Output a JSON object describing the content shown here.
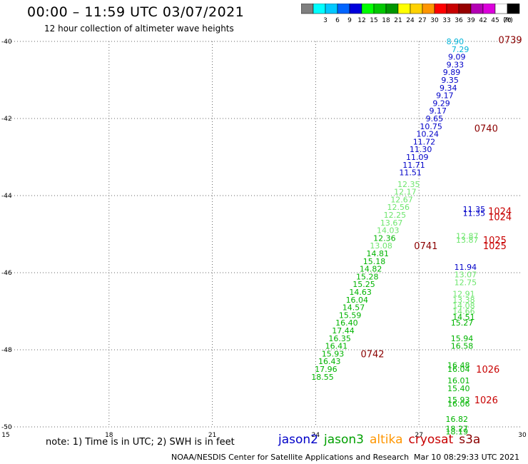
{
  "header": {
    "title": "00:00 – 11:59 UTC 03/07/2021",
    "subtitle": "12 hour collection of altimeter wave heights"
  },
  "colorbar": {
    "unit": "(ft)",
    "bins": [
      {
        "label": "",
        "color": "#7f7f7f"
      },
      {
        "label": "3",
        "color": "#00ffff"
      },
      {
        "label": "6",
        "color": "#00c8ff"
      },
      {
        "label": "9",
        "color": "#0064ff"
      },
      {
        "label": "12",
        "color": "#0000dc"
      },
      {
        "label": "15",
        "color": "#00ff00"
      },
      {
        "label": "18",
        "color": "#00c800"
      },
      {
        "label": "21",
        "color": "#009600"
      },
      {
        "label": "24",
        "color": "#ffff00"
      },
      {
        "label": "27",
        "color": "#ffd200"
      },
      {
        "label": "30",
        "color": "#ff9600"
      },
      {
        "label": "33",
        "color": "#ff0000"
      },
      {
        "label": "36",
        "color": "#c80000"
      },
      {
        "label": "39",
        "color": "#960000"
      },
      {
        "label": "42",
        "color": "#b400b4"
      },
      {
        "label": "45",
        "color": "#dc00dc"
      },
      {
        "label": "70",
        "color": "#ffffff"
      },
      {
        "label": "",
        "color": "#000000"
      }
    ]
  },
  "map": {
    "lon_labels": [
      "15",
      "18",
      "21",
      "24",
      "27",
      "30"
    ],
    "lon_values": [
      15,
      18,
      21,
      24,
      27,
      30
    ],
    "lat_labels": [
      "-40",
      "-42",
      "-44",
      "-46",
      "-48",
      "-50"
    ],
    "lat_values": [
      -40,
      -42,
      -44,
      -46,
      -48,
      -50
    ],
    "lon_range": [
      15,
      30
    ],
    "lat_range": [
      -40,
      -50
    ]
  },
  "observations": [
    {
      "lon": 28.05,
      "lat": -40.0,
      "text": "8.90",
      "color": "#00b4d8"
    },
    {
      "lon": 28.2,
      "lat": -40.2,
      "text": "7.29",
      "color": "#00b4d8"
    },
    {
      "lon": 28.1,
      "lat": -40.4,
      "text": "9.09",
      "color": "#0000c8"
    },
    {
      "lon": 28.05,
      "lat": -40.6,
      "text": "9.33",
      "color": "#0000c8"
    },
    {
      "lon": 27.95,
      "lat": -40.8,
      "text": "9.89",
      "color": "#0000c8"
    },
    {
      "lon": 27.9,
      "lat": -41.0,
      "text": "9.35",
      "color": "#0000c8"
    },
    {
      "lon": 27.85,
      "lat": -41.2,
      "text": "9.34",
      "color": "#0000c8"
    },
    {
      "lon": 27.75,
      "lat": -41.4,
      "text": "9.17",
      "color": "#0000c8"
    },
    {
      "lon": 27.65,
      "lat": -41.6,
      "text": "9.29",
      "color": "#0000c8"
    },
    {
      "lon": 27.55,
      "lat": -41.8,
      "text": "9.17",
      "color": "#0000c8"
    },
    {
      "lon": 27.45,
      "lat": -42.0,
      "text": "9.65",
      "color": "#0000c8"
    },
    {
      "lon": 27.35,
      "lat": -42.2,
      "text": "10.75",
      "color": "#0000c8"
    },
    {
      "lon": 27.25,
      "lat": -42.4,
      "text": "10.24",
      "color": "#0000c8"
    },
    {
      "lon": 27.15,
      "lat": -42.6,
      "text": "11.72",
      "color": "#0000c8"
    },
    {
      "lon": 27.05,
      "lat": -42.8,
      "text": "11.30",
      "color": "#0000c8"
    },
    {
      "lon": 26.95,
      "lat": -43.0,
      "text": "11.09",
      "color": "#0000c8"
    },
    {
      "lon": 26.85,
      "lat": -43.2,
      "text": "11.71",
      "color": "#0000c8"
    },
    {
      "lon": 26.75,
      "lat": -43.4,
      "text": "11.51",
      "color": "#0000c8"
    },
    {
      "lon": 26.7,
      "lat": -43.7,
      "text": "12.35",
      "color": "#6ee66e"
    },
    {
      "lon": 26.6,
      "lat": -43.9,
      "text": "12.17",
      "color": "#6ee66e"
    },
    {
      "lon": 26.5,
      "lat": -44.1,
      "text": "12.67",
      "color": "#6ee66e"
    },
    {
      "lon": 26.4,
      "lat": -44.3,
      "text": "12.56",
      "color": "#6ee66e"
    },
    {
      "lon": 26.3,
      "lat": -44.5,
      "text": "12.25",
      "color": "#6ee66e"
    },
    {
      "lon": 26.2,
      "lat": -44.7,
      "text": "13.67",
      "color": "#6ee66e"
    },
    {
      "lon": 26.1,
      "lat": -44.9,
      "text": "14.03",
      "color": "#6ee66e"
    },
    {
      "lon": 26.0,
      "lat": -45.1,
      "text": "12.36",
      "color": "#00b400"
    },
    {
      "lon": 25.9,
      "lat": -45.3,
      "text": "13.08",
      "color": "#6ee66e"
    },
    {
      "lon": 25.8,
      "lat": -45.5,
      "text": "14.81",
      "color": "#00b400"
    },
    {
      "lon": 25.7,
      "lat": -45.7,
      "text": "15.18",
      "color": "#00b400"
    },
    {
      "lon": 25.6,
      "lat": -45.9,
      "text": "14.82",
      "color": "#00b400"
    },
    {
      "lon": 25.5,
      "lat": -46.1,
      "text": "15.28",
      "color": "#00b400"
    },
    {
      "lon": 25.4,
      "lat": -46.3,
      "text": "15.25",
      "color": "#00b400"
    },
    {
      "lon": 25.3,
      "lat": -46.5,
      "text": "14.63",
      "color": "#00b400"
    },
    {
      "lon": 25.2,
      "lat": -46.7,
      "text": "16.04",
      "color": "#00b400"
    },
    {
      "lon": 25.1,
      "lat": -46.9,
      "text": "14.57",
      "color": "#00b400"
    },
    {
      "lon": 25.0,
      "lat": -47.1,
      "text": "15.59",
      "color": "#00b400"
    },
    {
      "lon": 24.9,
      "lat": -47.3,
      "text": "16.40",
      "color": "#00b400"
    },
    {
      "lon": 24.8,
      "lat": -47.5,
      "text": "17.44",
      "color": "#00b400"
    },
    {
      "lon": 24.7,
      "lat": -47.7,
      "text": "16.35",
      "color": "#00b400"
    },
    {
      "lon": 24.6,
      "lat": -47.9,
      "text": "16.41",
      "color": "#00b400"
    },
    {
      "lon": 24.5,
      "lat": -48.1,
      "text": "15.93",
      "color": "#00b400"
    },
    {
      "lon": 24.4,
      "lat": -48.3,
      "text": "16.43",
      "color": "#00b400"
    },
    {
      "lon": 24.3,
      "lat": -48.5,
      "text": "17.96",
      "color": "#00b400"
    },
    {
      "lon": 24.2,
      "lat": -48.7,
      "text": "18.55",
      "color": "#00b400"
    },
    {
      "lon": 28.6,
      "lat": -44.35,
      "text": "11.35",
      "color": "#0000c8"
    },
    {
      "lon": 28.6,
      "lat": -44.45,
      "text": "11.35",
      "color": "#0000c8"
    },
    {
      "lon": 28.4,
      "lat": -45.05,
      "text": "12.87",
      "color": "#6ee66e"
    },
    {
      "lon": 28.4,
      "lat": -45.15,
      "text": "13.87",
      "color": "#6ee66e"
    },
    {
      "lon": 28.35,
      "lat": -45.85,
      "text": "11.94",
      "color": "#0000c8"
    },
    {
      "lon": 28.35,
      "lat": -46.05,
      "text": "13.07",
      "color": "#6ee66e"
    },
    {
      "lon": 28.35,
      "lat": -46.25,
      "text": "12.75",
      "color": "#6ee66e"
    },
    {
      "lon": 28.3,
      "lat": -46.55,
      "text": "12.91",
      "color": "#6ee66e"
    },
    {
      "lon": 28.3,
      "lat": -46.7,
      "text": "13.38",
      "color": "#6ee66e"
    },
    {
      "lon": 28.3,
      "lat": -46.85,
      "text": "14.08",
      "color": "#6ee66e"
    },
    {
      "lon": 28.3,
      "lat": -47.0,
      "text": "14.66",
      "color": "#6ee66e"
    },
    {
      "lon": 28.3,
      "lat": -47.15,
      "text": "14.51",
      "color": "#00b400"
    },
    {
      "lon": 28.25,
      "lat": -47.3,
      "text": "15.27",
      "color": "#00b400"
    },
    {
      "lon": 28.25,
      "lat": -47.7,
      "text": "15.94",
      "color": "#00b400"
    },
    {
      "lon": 28.25,
      "lat": -47.9,
      "text": "16.58",
      "color": "#00b400"
    },
    {
      "lon": 28.15,
      "lat": -48.4,
      "text": "16.48",
      "color": "#00b400"
    },
    {
      "lon": 28.15,
      "lat": -48.5,
      "text": "16.04",
      "color": "#00b400"
    },
    {
      "lon": 28.15,
      "lat": -48.8,
      "text": "16.01",
      "color": "#00b400"
    },
    {
      "lon": 28.15,
      "lat": -49.0,
      "text": "15.40",
      "color": "#00b400"
    },
    {
      "lon": 28.15,
      "lat": -49.3,
      "text": "15.93",
      "color": "#00b400"
    },
    {
      "lon": 28.15,
      "lat": -49.4,
      "text": "16.06",
      "color": "#00b400"
    },
    {
      "lon": 28.1,
      "lat": -49.8,
      "text": "16.82",
      "color": "#00b400"
    },
    {
      "lon": 28.1,
      "lat": -50.05,
      "text": "18.27",
      "color": "#00b400"
    },
    {
      "lon": 28.1,
      "lat": -50.12,
      "text": "18.19",
      "color": "#00b400"
    }
  ],
  "time_labels": [
    {
      "lon": 29.65,
      "lat": -39.95,
      "text": "0739",
      "color": "#8b0000"
    },
    {
      "lon": 28.95,
      "lat": -42.25,
      "text": "0740",
      "color": "#8b0000"
    },
    {
      "lon": 29.35,
      "lat": -44.4,
      "text": "1024",
      "color": "#c80000"
    },
    {
      "lon": 29.35,
      "lat": -44.55,
      "text": "1024",
      "color": "#c80000"
    },
    {
      "lon": 29.2,
      "lat": -45.15,
      "text": "1025",
      "color": "#c80000"
    },
    {
      "lon": 29.2,
      "lat": -45.3,
      "text": "1025",
      "color": "#c80000"
    },
    {
      "lon": 27.2,
      "lat": -45.3,
      "text": "0741",
      "color": "#8b0000"
    },
    {
      "lon": 29.0,
      "lat": -48.5,
      "text": "1026",
      "color": "#c80000"
    },
    {
      "lon": 28.95,
      "lat": -49.3,
      "text": "1026",
      "color": "#c80000"
    },
    {
      "lon": 25.65,
      "lat": -48.1,
      "text": "0742",
      "color": "#8b0000"
    }
  ],
  "footer": {
    "note": "note:  1) Time is in UTC; 2) SWH is in feet",
    "legend": [
      {
        "label": "jason2",
        "color": "#0000c8"
      },
      {
        "label": "jason3",
        "color": "#00a000"
      },
      {
        "label": "altika",
        "color": "#ff9600"
      },
      {
        "label": "cryosat",
        "color": "#c80000"
      },
      {
        "label": "s3a",
        "color": "#8b0000"
      }
    ],
    "credit": "NOAA/NESDIS Center for Satellite Applications and Research",
    "timestamp": "Mar 10 08:29:33 UTC 2021"
  }
}
